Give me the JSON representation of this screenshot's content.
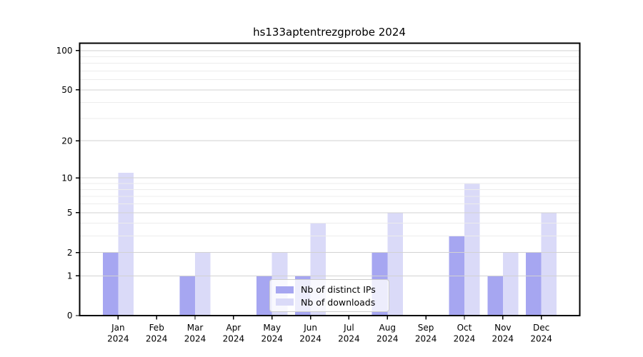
{
  "chart_data": {
    "type": "bar",
    "title": "hs133aptentrezgprobe 2024",
    "categories": [
      {
        "month": "Jan",
        "year": "2024"
      },
      {
        "month": "Feb",
        "year": "2024"
      },
      {
        "month": "Mar",
        "year": "2024"
      },
      {
        "month": "Apr",
        "year": "2024"
      },
      {
        "month": "May",
        "year": "2024"
      },
      {
        "month": "Jun",
        "year": "2024"
      },
      {
        "month": "Jul",
        "year": "2024"
      },
      {
        "month": "Aug",
        "year": "2024"
      },
      {
        "month": "Sep",
        "year": "2024"
      },
      {
        "month": "Oct",
        "year": "2024"
      },
      {
        "month": "Nov",
        "year": "2024"
      },
      {
        "month": "Dec",
        "year": "2024"
      }
    ],
    "series": [
      {
        "name": "Nb of distinct IPs",
        "color": "#a6a6f1",
        "values": [
          2,
          0,
          1,
          0,
          1,
          1,
          0,
          2,
          0,
          3,
          1,
          2
        ]
      },
      {
        "name": "Nb of downloads",
        "color": "#dadaf8",
        "values": [
          11,
          0,
          2,
          0,
          2,
          4,
          0,
          5,
          0,
          9,
          2,
          5
        ]
      }
    ],
    "y_scale": "log1p",
    "ylim": [
      0,
      114
    ],
    "yticks": [
      0,
      1,
      2,
      5,
      10,
      20,
      50,
      100
    ],
    "minor_gridlines": [
      3,
      4,
      6,
      7,
      8,
      9,
      30,
      40,
      60,
      70,
      80,
      90
    ],
    "grid": true,
    "legend_position": "bottom-center",
    "colors": {
      "major_grid": "#d2d2d2",
      "minor_grid": "#ececec",
      "axis": "#000000",
      "background": "#ffffff"
    }
  }
}
